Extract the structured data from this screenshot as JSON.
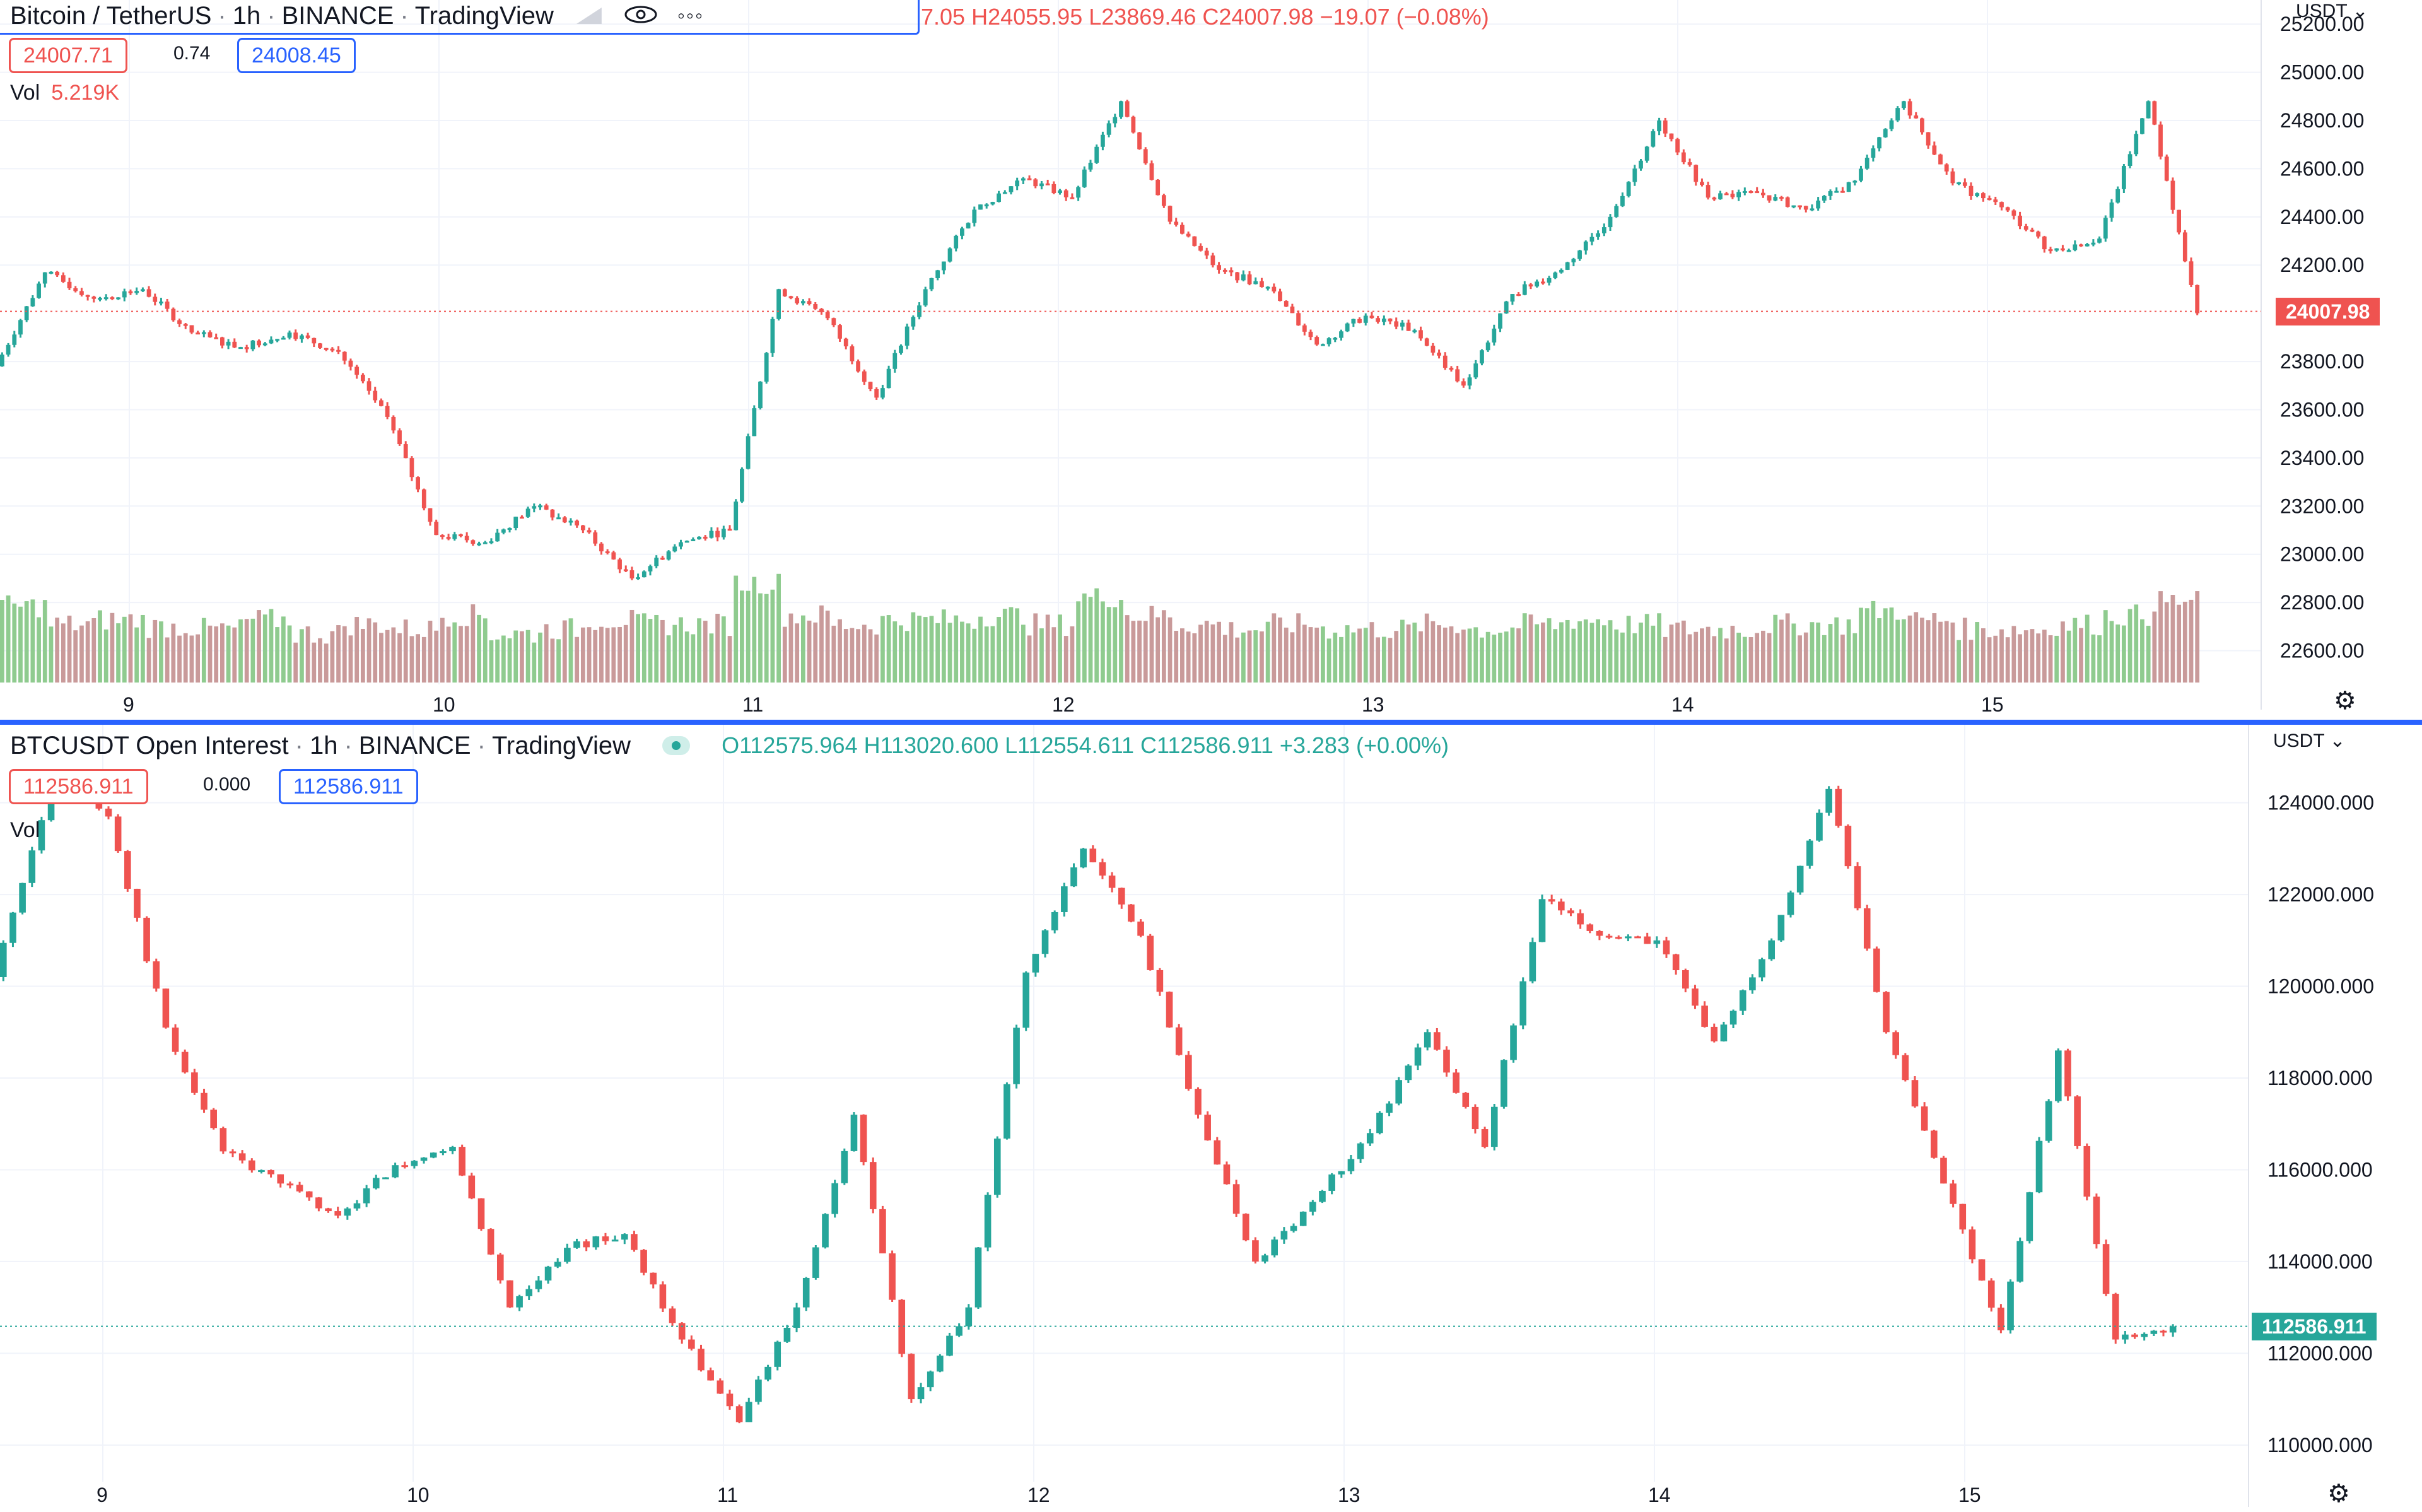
{
  "colors": {
    "up": "#26a69a",
    "down": "#ef5350",
    "up_vol": "#8fcb8f",
    "down_vol": "#c99a9a",
    "accent": "#2962ff",
    "grid": "#f0f3fa"
  },
  "pane1": {
    "title": "Bitcoin / TetherUS",
    "interval": "1h",
    "exchange": "BINANCE",
    "source": "TradingView",
    "ohlc_text": "7.05  H24055.95  L23869.46  C24007.98  −19.07 (−0.08%)",
    "bid": "24007.71",
    "spread": "0.74",
    "ask": "24008.45",
    "vol_label": "Vol",
    "vol_value": "5.219K",
    "unit": "USDT",
    "last_price": "24007.98",
    "icons": [
      "eye-icon",
      "more-icon",
      "gear-icon"
    ]
  },
  "pane2": {
    "title": "BTCUSDT Open Interest",
    "interval": "1h",
    "exchange": "BINANCE",
    "source": "TradingView",
    "ohlc_text": "O112575.964  H113020.600  L112554.611  C112586.911  +3.283 (+0.00%)",
    "bid": "112586.911",
    "spread": "0.000",
    "ask": "112586.911",
    "vol_label": "Vol",
    "unit": "USDT",
    "last_price": "112586.911",
    "icons": [
      "status-dot-icon",
      "gear-icon"
    ]
  },
  "chart_data": [
    {
      "type": "candlestick",
      "title": "Bitcoin / TetherUS · 1h · BINANCE",
      "x_ticks": [
        "9",
        "10",
        "11",
        "12",
        "13",
        "14",
        "15"
      ],
      "y_ticks": [
        "22600.00",
        "22800.00",
        "23000.00",
        "23200.00",
        "23400.00",
        "23600.00",
        "23800.00",
        "24200.00",
        "24400.00",
        "24600.00",
        "24800.00",
        "25000.00",
        "25200.00"
      ],
      "ylim": [
        22460,
        25300
      ],
      "last_price": 24007.98,
      "ohlc_anchors": [
        [
          23780,
          24170
        ],
        [
          24170,
          24060
        ],
        [
          24060,
          24100
        ],
        [
          24100,
          23920
        ],
        [
          23920,
          23860
        ],
        [
          23860,
          23920
        ],
        [
          23920,
          23840
        ],
        [
          23840,
          23570
        ],
        [
          23570,
          23080
        ],
        [
          23080,
          23050
        ],
        [
          23050,
          23200
        ],
        [
          23200,
          23100
        ],
        [
          23100,
          22900
        ],
        [
          22900,
          23050
        ],
        [
          23050,
          23100
        ],
        [
          23100,
          24100
        ],
        [
          24100,
          23980
        ],
        [
          23980,
          23650
        ],
        [
          23650,
          24100
        ],
        [
          24100,
          24430
        ],
        [
          24430,
          24560
        ],
        [
          24560,
          24480
        ],
        [
          24480,
          24880
        ],
        [
          24880,
          24380
        ],
        [
          24380,
          24180
        ],
        [
          24180,
          24110
        ],
        [
          24110,
          23870
        ],
        [
          23870,
          23990
        ],
        [
          23990,
          23930
        ],
        [
          23930,
          23700
        ],
        [
          23700,
          24080
        ],
        [
          24080,
          24180
        ],
        [
          24180,
          24400
        ],
        [
          24400,
          24800
        ],
        [
          24800,
          24480
        ],
        [
          24480,
          24500
        ],
        [
          24500,
          24430
        ],
        [
          24430,
          24550
        ],
        [
          24550,
          24880
        ],
        [
          24880,
          24540
        ],
        [
          24540,
          24440
        ],
        [
          24440,
          24260
        ],
        [
          24260,
          24310
        ],
        [
          24310,
          24880
        ],
        [
          24880,
          24000
        ]
      ],
      "volume_anchors": [
        1,
        0.6,
        0.7,
        0.55,
        0.5,
        0.7,
        0.4,
        0.6,
        0.5,
        0.8,
        0.4,
        0.5,
        0.7,
        0.6,
        0.6,
        1.5,
        0.8,
        0.6,
        0.7,
        0.7,
        0.8,
        0.6,
        1.2,
        0.8,
        0.6,
        0.5,
        0.6,
        0.5,
        0.5,
        0.6,
        0.5,
        0.6,
        0.7,
        0.6,
        0.5,
        0.5,
        0.6,
        0.6,
        0.9,
        0.7,
        0.5,
        0.5,
        0.6,
        0.8,
        1.1
      ]
    },
    {
      "type": "candlestick",
      "title": "BTCUSDT Open Interest · 1h · BINANCE",
      "x_ticks": [
        "9",
        "10",
        "11",
        "12",
        "13",
        "14",
        "15"
      ],
      "y_ticks": [
        "110000.000",
        "112000.000",
        "114000.000",
        "116000.000",
        "118000.000",
        "120000.000",
        "122000.000",
        "124000.000"
      ],
      "ylim": [
        109200,
        125700
      ],
      "last_price": 112586.911,
      "ohlc_anchors": [
        [
          120200,
          124400
        ],
        [
          124400,
          123700
        ],
        [
          123700,
          119100
        ],
        [
          119100,
          116400
        ],
        [
          116400,
          115700
        ],
        [
          115700,
          115000
        ],
        [
          115000,
          116100
        ],
        [
          116100,
          116500
        ],
        [
          116500,
          113000
        ],
        [
          113000,
          114300
        ],
        [
          114300,
          114600
        ],
        [
          114600,
          112300
        ],
        [
          112300,
          110500
        ],
        [
          110500,
          113000
        ],
        [
          113000,
          117200
        ],
        [
          117200,
          111000
        ],
        [
          111000,
          113000
        ],
        [
          113000,
          120300
        ],
        [
          120300,
          123000
        ],
        [
          123000,
          121100
        ],
        [
          121100,
          117200
        ],
        [
          117200,
          114000
        ],
        [
          114000,
          115300
        ],
        [
          115300,
          116800
        ],
        [
          116800,
          119000
        ],
        [
          119000,
          116500
        ],
        [
          116500,
          121900
        ],
        [
          121900,
          121100
        ],
        [
          121100,
          121000
        ],
        [
          121000,
          118800
        ],
        [
          118800,
          121000
        ],
        [
          121000,
          124300
        ],
        [
          124300,
          119000
        ],
        [
          119000,
          115700
        ],
        [
          115700,
          112500
        ],
        [
          112500,
          118600
        ],
        [
          118600,
          112300
        ],
        [
          112300,
          112586
        ]
      ]
    }
  ]
}
